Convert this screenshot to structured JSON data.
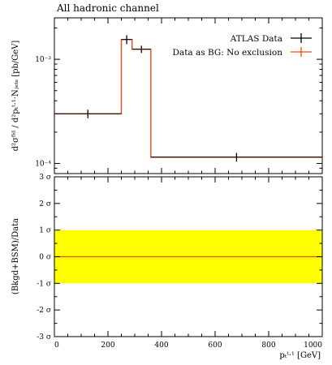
{
  "chart_data": [
    {
      "type": "line",
      "title": "All hadronic channel",
      "ylabel": "d²σ^fid / d²p_T^{t,1}·N_jets [pb/GeV]",
      "ylabel_text": "d²σᶠⁱᵈ / d²pₜᵗ·¹·Nⱼₑₜₛ  [pb/GeV]",
      "yscale": "log",
      "xlim": [
        0,
        1000
      ],
      "ylim": [
        8e-05,
        0.0025
      ],
      "y_ticks": [
        {
          "value": 0.001,
          "label": "10⁻³"
        },
        {
          "value": 0.0001,
          "label": "10⁻⁴"
        }
      ],
      "legend_placement": "top-right",
      "series": [
        {
          "name": "ATLAS Data",
          "color": "#000000",
          "style": "points-with-error-bars",
          "points": [
            {
              "x": 125,
              "y": 0.0003,
              "xerr": [
                125,
                125
              ],
              "yerr": [
                2.8e-05,
                2.8e-05
              ]
            },
            {
              "x": 270,
              "y": 0.00155,
              "xerr": [
                20,
                20
              ],
              "yerr": [
                0.00015,
                0.00015
              ]
            },
            {
              "x": 325,
              "y": 0.00125,
              "xerr": [
                35,
                35
              ],
              "yerr": [
                0.0001,
                0.0001
              ]
            },
            {
              "x": 680,
              "y": 0.000115,
              "xerr": [
                320,
                320
              ],
              "yerr": [
                1.1e-05,
                1.1e-05
              ]
            }
          ]
        },
        {
          "name": "Data as BG: No exclusion",
          "color": "#e8491d",
          "style": "step",
          "bins": [
            {
              "x0": 0,
              "x1": 250,
              "y": 0.0003
            },
            {
              "x0": 250,
              "x1": 290,
              "y": 0.00155
            },
            {
              "x0": 290,
              "x1": 360,
              "y": 0.00125
            },
            {
              "x0": 360,
              "x1": 1000,
              "y": 0.000115
            }
          ]
        }
      ]
    },
    {
      "type": "line",
      "ylabel": "(Bkgd+BSM)/Data",
      "xlabel": "p_T^{t,1} [GeV]",
      "xlabel_text": "pₜᵗ·¹  [GeV]",
      "xlim": [
        0,
        1000
      ],
      "ylim": [
        -3,
        3
      ],
      "x_ticks": [
        {
          "value": 0,
          "label": "0"
        },
        {
          "value": 200,
          "label": "200"
        },
        {
          "value": 400,
          "label": "400"
        },
        {
          "value": 600,
          "label": "600"
        },
        {
          "value": 800,
          "label": "800"
        },
        {
          "value": 1000,
          "label": "1000"
        }
      ],
      "y_ticks": [
        {
          "value": 3,
          "label": "3 σ"
        },
        {
          "value": 2,
          "label": "2 σ"
        },
        {
          "value": 1,
          "label": "1 σ"
        },
        {
          "value": 0,
          "label": "0 σ"
        },
        {
          "value": -1,
          "label": "-1 σ"
        },
        {
          "value": -2,
          "label": "-2 σ"
        },
        {
          "value": -3,
          "label": "-3 σ"
        }
      ],
      "band": {
        "y0": -1,
        "y1": 1,
        "color": "#ffff00"
      },
      "series": [
        {
          "name": "",
          "color": "#e8491d",
          "x": [
            0,
            1000
          ],
          "y": [
            0,
            0
          ]
        }
      ]
    }
  ]
}
